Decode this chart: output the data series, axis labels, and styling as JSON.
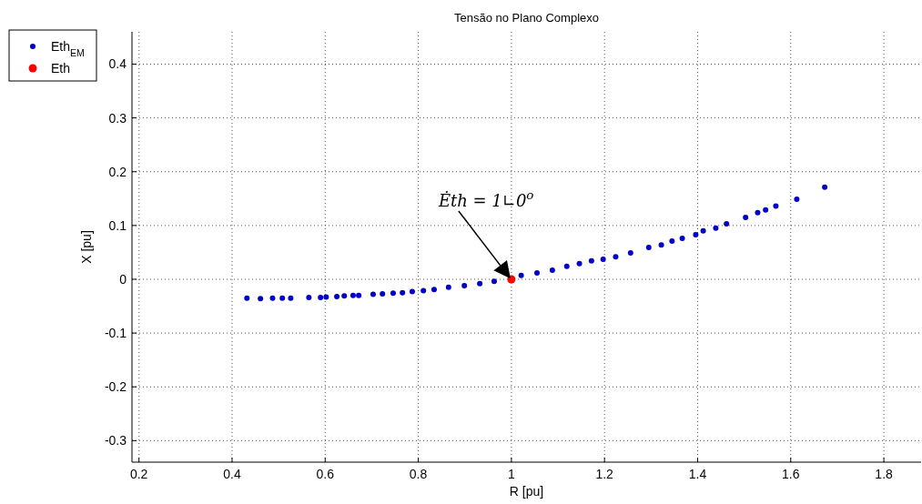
{
  "chart_data": {
    "type": "scatter",
    "title": "Tensão no Plano Complexo",
    "xlabel": "R [pu]",
    "ylabel": "X [pu]",
    "xlim": [
      0.185,
      1.88
    ],
    "ylim": [
      -0.34,
      0.46
    ],
    "xticks": [
      0.2,
      0.4,
      0.6,
      0.8,
      1,
      1.2,
      1.4,
      1.6,
      1.8
    ],
    "yticks": [
      -0.3,
      -0.2,
      -0.1,
      0,
      0.1,
      0.2,
      0.3,
      0.4
    ],
    "grid": true,
    "legend": "top left",
    "marker": "circle",
    "annotations": [
      "Ėth = 1∟0$^{o}$"
    ],
    "series": [
      {
        "name": "Eth$_{EM}$",
        "color": "#0000c8",
        "x": [
          0.432,
          0.461,
          0.487,
          0.508,
          0.526,
          0.565,
          0.59,
          0.602,
          0.625,
          0.641,
          0.66,
          0.672,
          0.703,
          0.723,
          0.746,
          0.766,
          0.787,
          0.811,
          0.834,
          0.865,
          0.899,
          0.932,
          0.963,
          1.021,
          1.055,
          1.088,
          1.119,
          1.146,
          1.172,
          1.197,
          1.224,
          1.256,
          1.295,
          1.322,
          1.345,
          1.367,
          1.396,
          1.412,
          1.439,
          1.462,
          1.503,
          1.529,
          1.546,
          1.568,
          1.613,
          1.673
        ],
        "values": [
          -0.035,
          -0.036,
          -0.035,
          -0.035,
          -0.035,
          -0.034,
          -0.034,
          -0.033,
          -0.032,
          -0.031,
          -0.03,
          -0.03,
          -0.028,
          -0.027,
          -0.026,
          -0.025,
          -0.023,
          -0.021,
          -0.019,
          -0.015,
          -0.012,
          -0.008,
          -0.004,
          0.007,
          0.012,
          0.017,
          0.024,
          0.029,
          0.034,
          0.037,
          0.042,
          0.049,
          0.059,
          0.064,
          0.071,
          0.076,
          0.083,
          0.09,
          0.095,
          0.103,
          0.115,
          0.124,
          0.129,
          0.136,
          0.149,
          0.171
        ]
      },
      {
        "name": "Eth",
        "color": "#ff0000",
        "x": [
          1
        ],
        "values": [
          0
        ]
      }
    ]
  }
}
